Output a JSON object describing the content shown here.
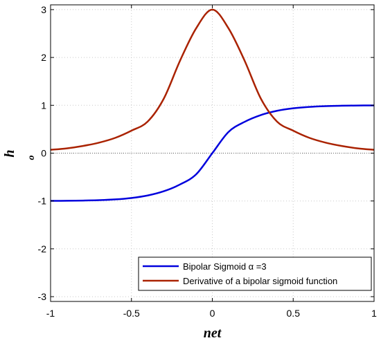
{
  "chart_data": {
    "type": "line",
    "title": "",
    "xlabel": "net",
    "ylabel": "h",
    "ylabel_sub": "o",
    "xlim": [
      -1,
      1
    ],
    "ylim": [
      -3.1,
      3.1
    ],
    "xticks": [
      -1,
      -0.5,
      0,
      0.5,
      1
    ],
    "xtick_labels": [
      "-1",
      "-0.5",
      "0",
      "0.5",
      "1"
    ],
    "yticks": [
      -3,
      -2,
      -1,
      0,
      1,
      2,
      3
    ],
    "ytick_labels": [
      "-3",
      "-2",
      "-1",
      "0",
      "1",
      "2",
      "3"
    ],
    "grid": true,
    "legend_position": "bottom-right",
    "series": [
      {
        "name": "Bipolar Sigmoid α =3",
        "color": "#0000dd",
        "x": [
          -1,
          -0.9,
          -0.8,
          -0.7,
          -0.6,
          -0.5,
          -0.4,
          -0.3,
          -0.2,
          -0.1,
          0,
          0.1,
          0.2,
          0.3,
          0.4,
          0.5,
          0.6,
          0.7,
          0.8,
          0.9,
          1
        ],
        "y": [
          -0.998,
          -0.996,
          -0.991,
          -0.983,
          -0.967,
          -0.937,
          -0.885,
          -0.796,
          -0.655,
          -0.443,
          0,
          0.443,
          0.655,
          0.796,
          0.885,
          0.937,
          0.967,
          0.983,
          0.991,
          0.996,
          0.998
        ]
      },
      {
        "name": "Derivative of a bipolar sigmoid function",
        "color": "#aa2200",
        "x": [
          -1,
          -0.9,
          -0.8,
          -0.7,
          -0.6,
          -0.5,
          -0.4,
          -0.3,
          -0.2,
          -0.1,
          0,
          0.1,
          0.2,
          0.3,
          0.4,
          0.5,
          0.6,
          0.7,
          0.8,
          0.9,
          1
        ],
        "y": [
          0.07,
          0.1,
          0.15,
          0.22,
          0.32,
          0.47,
          0.66,
          1.14,
          1.93,
          2.61,
          3.0,
          2.61,
          1.93,
          1.14,
          0.66,
          0.47,
          0.32,
          0.22,
          0.15,
          0.1,
          0.07
        ]
      }
    ]
  }
}
